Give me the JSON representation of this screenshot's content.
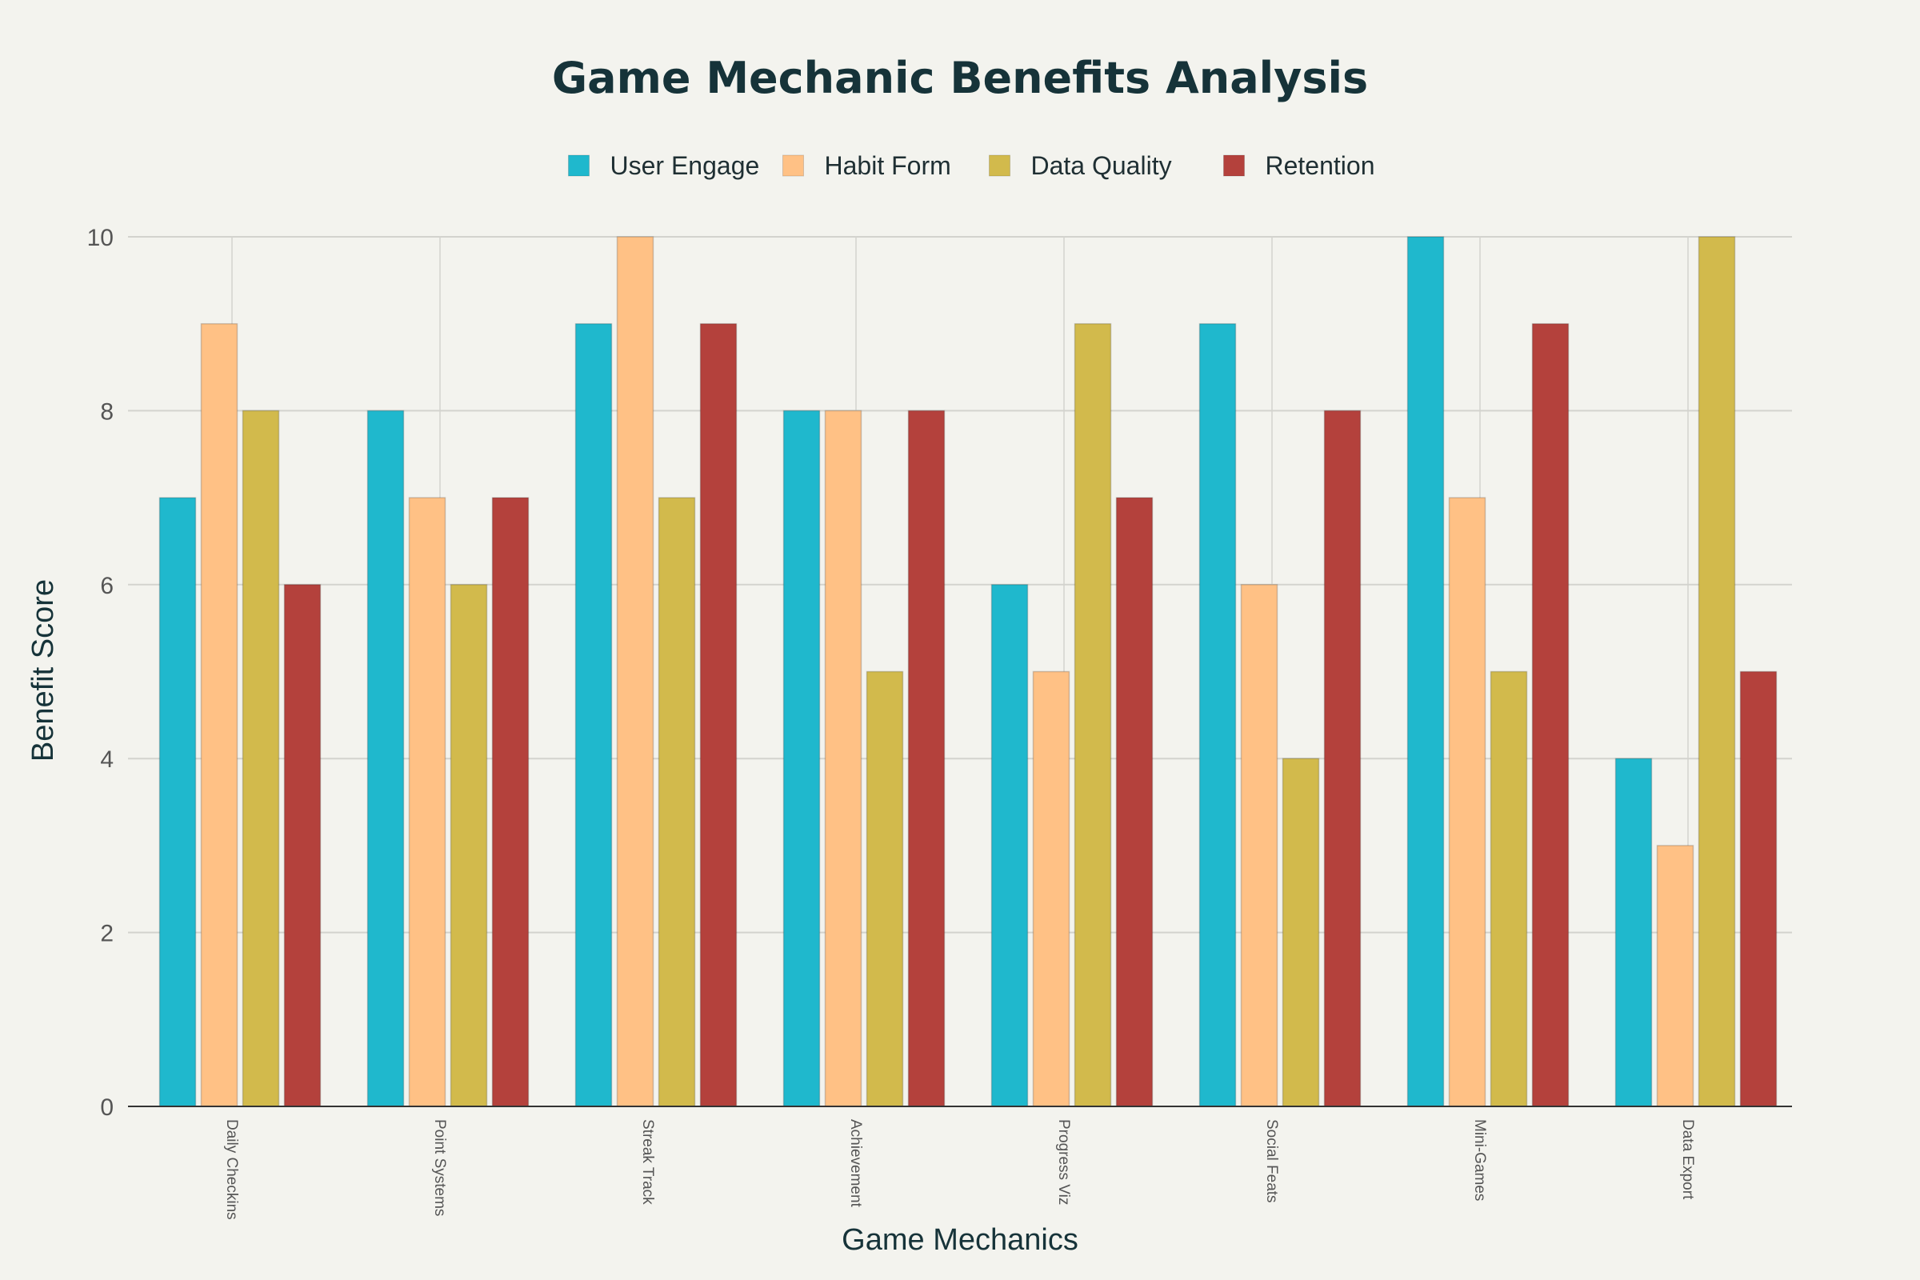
{
  "chart_data": {
    "type": "bar",
    "title": "Game Mechanic Benefits Analysis",
    "xlabel": "Game Mechanics",
    "ylabel": "Benefit Score",
    "ylim": [
      0,
      10
    ],
    "yticks": [
      "0",
      "2",
      "4",
      "6",
      "8",
      "10"
    ],
    "grid": true,
    "legend_position": "top-center",
    "categories": [
      "Daily Checkins",
      "Point Systems",
      "Streak Track",
      "Achievement",
      "Progress Viz",
      "Social Feats",
      "Mini-Games",
      "Data Export"
    ],
    "series": [
      {
        "name": "User Engage",
        "color": "#1fb8cd",
        "values": [
          7,
          8,
          9,
          8,
          6,
          9,
          10,
          4
        ]
      },
      {
        "name": "Habit Form",
        "color": "#ffc185",
        "values": [
          9,
          7,
          10,
          8,
          5,
          6,
          7,
          3
        ]
      },
      {
        "name": "Data Quality",
        "color": "#d2ba4c",
        "values": [
          8,
          6,
          7,
          5,
          9,
          4,
          5,
          10
        ]
      },
      {
        "name": "Retention",
        "color": "#b4413c",
        "values": [
          6,
          7,
          9,
          8,
          7,
          8,
          9,
          5
        ]
      }
    ]
  }
}
